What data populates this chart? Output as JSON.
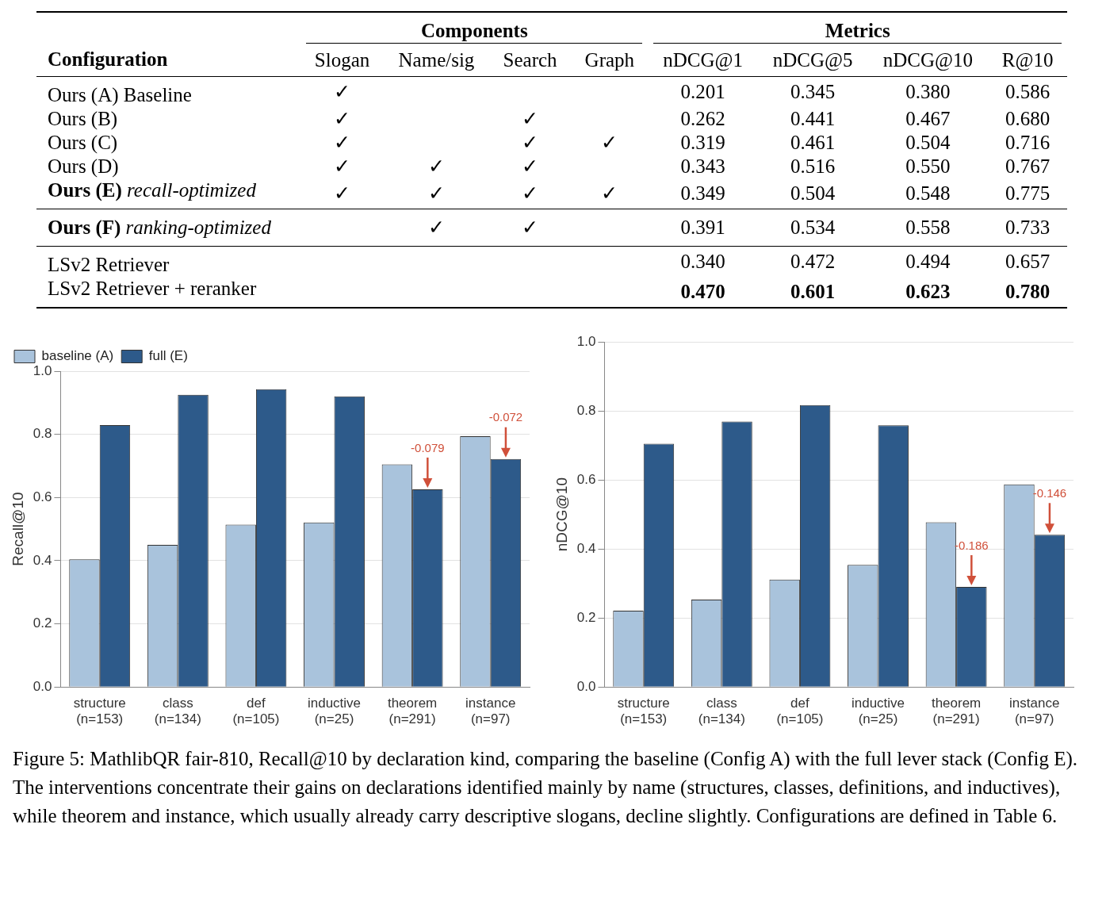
{
  "chart_data": [
    {
      "type": "other",
      "ylabel": "Configuration",
      "annotations": [
        "Components",
        "Metrics"
      ],
      "categories": [
        "Ours (A) Baseline",
        "Ours (B)",
        "Ours (C)",
        "Ours (D)",
        "Ours (E) recall-optimized",
        "Ours (F) ranking-optimized",
        "LSv2 Retriever",
        "LSv2 Retriever + reranker"
      ],
      "series": [
        {
          "name": "Slogan",
          "values": [
            null,
            null,
            null,
            null,
            null,
            null,
            null,
            null
          ],
          "value_labels": [
            "✓",
            "✓",
            "✓",
            "✓",
            "✓",
            null,
            null,
            null
          ]
        },
        {
          "name": "Name/sig",
          "values": [
            null,
            null,
            null,
            null,
            null,
            null,
            null,
            null
          ],
          "value_labels": [
            null,
            null,
            null,
            "✓",
            "✓",
            "✓",
            null,
            null
          ]
        },
        {
          "name": "Search",
          "values": [
            null,
            null,
            null,
            null,
            null,
            null,
            null,
            null
          ],
          "value_labels": [
            null,
            "✓",
            "✓",
            "✓",
            "✓",
            "✓",
            null,
            null
          ]
        },
        {
          "name": "Graph",
          "values": [
            null,
            null,
            null,
            null,
            null,
            null,
            null,
            null
          ],
          "value_labels": [
            null,
            null,
            "✓",
            null,
            "✓",
            null,
            null,
            null
          ]
        },
        {
          "name": "nDCG@1",
          "values": [
            0.201,
            0.262,
            0.319,
            0.343,
            0.349,
            0.391,
            0.34,
            0.47
          ],
          "value_labels": [
            "0.201",
            "0.262",
            "0.319",
            "0.343",
            "0.349",
            "0.391",
            "0.340",
            "0.470"
          ]
        },
        {
          "name": "nDCG@5",
          "values": [
            0.345,
            0.441,
            0.461,
            0.516,
            0.504,
            0.534,
            0.472,
            0.601
          ],
          "value_labels": [
            "0.345",
            "0.441",
            "0.461",
            "0.516",
            "0.504",
            "0.534",
            "0.472",
            "0.601"
          ]
        },
        {
          "name": "nDCG@10",
          "values": [
            0.38,
            0.467,
            0.504,
            0.55,
            0.548,
            0.558,
            0.494,
            0.623
          ],
          "value_labels": [
            "0.380",
            "0.467",
            "0.504",
            "0.550",
            "0.548",
            "0.558",
            "0.494",
            "0.623"
          ]
        },
        {
          "name": "R@10",
          "values": [
            0.586,
            0.68,
            0.716,
            0.767,
            0.775,
            0.733,
            0.657,
            0.78
          ],
          "value_labels": [
            "0.586",
            "0.680",
            "0.716",
            "0.767",
            "0.775",
            "0.733",
            "0.657",
            "0.780"
          ]
        }
      ]
    },
    {
      "type": "bar",
      "ylabel": "Recall@10",
      "categories": [
        "structure\n(n=153)",
        "class\n(n=134)",
        "def\n(n=105)",
        "inductive\n(n=25)",
        "theorem\n(n=291)",
        "instance\n(n=97)"
      ],
      "series": [
        {
          "name": "baseline (A)",
          "color": "#a9c3dc",
          "values": [
            0.404,
            0.45,
            0.514,
            0.521,
            0.705,
            0.794
          ]
        },
        {
          "name": "full (E)",
          "color": "#2d5a8a",
          "values": [
            0.829,
            0.925,
            0.943,
            0.92,
            0.626,
            0.722
          ]
        }
      ],
      "ylim": [
        0,
        1
      ],
      "yticks": [
        {
          "value": 0,
          "label": "0.0"
        },
        {
          "value": 0.2,
          "label": "0.2"
        },
        {
          "value": 0.4,
          "label": "0.4"
        },
        {
          "value": 0.6,
          "label": "0.6"
        },
        {
          "value": 0.8,
          "label": "0.8"
        },
        {
          "value": 1,
          "label": "1.0"
        }
      ],
      "grid": "y",
      "legend": "top left",
      "annotations": [
        {
          "text": "-0.079",
          "x": "theorem\n(n=291)",
          "y": 0.626
        },
        {
          "text": "-0.072",
          "x": "instance\n(n=97)",
          "y": 0.722
        }
      ]
    },
    {
      "type": "bar",
      "ylabel": "nDCG@10",
      "categories": [
        "structure\n(n=153)",
        "class\n(n=134)",
        "def\n(n=105)",
        "inductive\n(n=25)",
        "theorem\n(n=291)",
        "instance\n(n=97)"
      ],
      "series": [
        {
          "color": "#a9c3dc",
          "values": [
            0.221,
            0.253,
            0.311,
            0.354,
            0.477,
            0.587
          ]
        },
        {
          "color": "#2d5a8a",
          "values": [
            0.705,
            0.769,
            0.817,
            0.758,
            0.29,
            0.441
          ]
        }
      ],
      "ylim": [
        0,
        1
      ],
      "yticks": [
        {
          "value": 0,
          "label": "0.0"
        },
        {
          "value": 0.2,
          "label": "0.2"
        },
        {
          "value": 0.4,
          "label": "0.4"
        },
        {
          "value": 0.6,
          "label": "0.6"
        },
        {
          "value": 0.8,
          "label": "0.8"
        },
        {
          "value": 1,
          "label": "1.0"
        }
      ],
      "grid": "y",
      "annotations": [
        {
          "text": "-0.186",
          "x": "theorem\n(n=291)",
          "y": 0.29
        },
        {
          "text": "-0.146",
          "x": "instance\n(n=97)",
          "y": 0.441
        },
        "Figure 5: MathlibQR fair-810, Recall@10 by declaration kind, comparing the baseline (Config A) with the full lever stack (Config E). The interventions concentrate their gains on declarations identified mainly by name (structures, classes, definitions, and inductives), while theorem and instance, which usually already carry descriptive slogans, decline slightly. Configurations are defined in Table 6."
      ]
    }
  ]
}
